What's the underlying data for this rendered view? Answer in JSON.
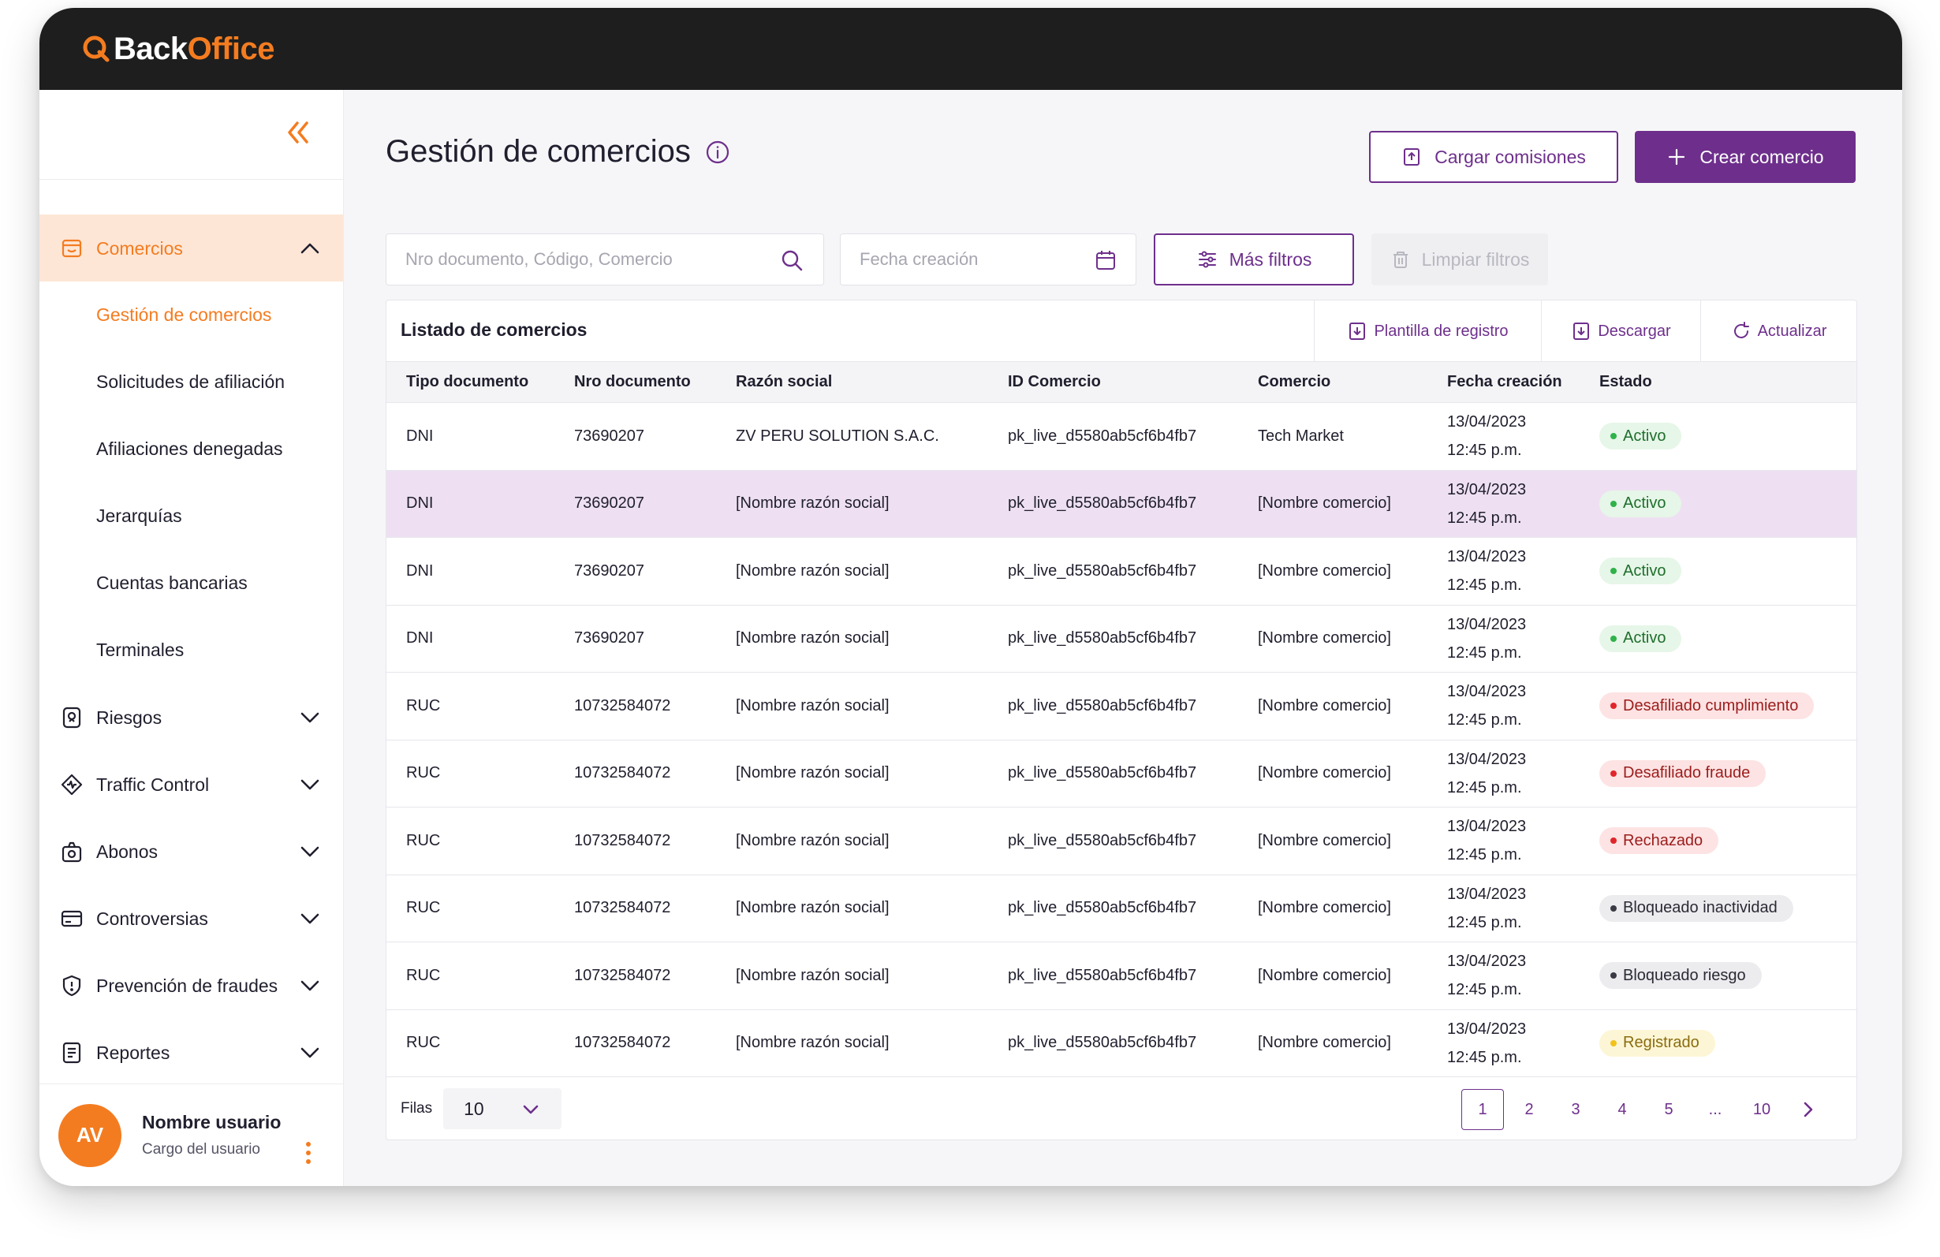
{
  "brand": {
    "back": "Back",
    "office": "Office",
    "accent": "#f47c20",
    "primary": "#6e2f8c"
  },
  "sidebar": {
    "collapse_icon": "double-chevron-left-icon",
    "sections": [
      {
        "label": "Comercios",
        "icon": "store-icon",
        "expanded": true,
        "children": [
          {
            "label": "Gestión de comercios",
            "active": true
          },
          {
            "label": "Solicitudes de afiliación"
          },
          {
            "label": "Afiliaciones denegadas"
          },
          {
            "label": "Jerarquías"
          },
          {
            "label": "Cuentas bancarias"
          },
          {
            "label": "Terminales"
          }
        ]
      },
      {
        "label": "Riesgos",
        "icon": "risk-icon"
      },
      {
        "label": "Traffic Control",
        "icon": "traffic-icon"
      },
      {
        "label": "Abonos",
        "icon": "money-bag-icon"
      },
      {
        "label": "Controversias",
        "icon": "card-icon"
      },
      {
        "label": "Prevención de fraudes",
        "icon": "shield-alert-icon"
      },
      {
        "label": "Reportes",
        "icon": "report-icon"
      }
    ],
    "user": {
      "initials": "AV",
      "name": "Nombre usuario",
      "role": "Cargo del usuario"
    }
  },
  "header": {
    "title": "Gestión de comercios",
    "load_commissions": "Cargar comisiones",
    "create_merchant": "Crear comercio"
  },
  "filters": {
    "search_placeholder": "Nro documento, Código, Comercio",
    "date_placeholder": "Fecha creación",
    "more_filters": "Más filtros",
    "clear_filters": "Limpiar filtros"
  },
  "table": {
    "title": "Listado de comercios",
    "actions": {
      "template": "Plantilla de registro",
      "download": "Descargar",
      "refresh": "Actualizar"
    },
    "columns": [
      "Tipo documento",
      "Nro documento",
      "Razón social",
      "ID Comercio",
      "Comercio",
      "Fecha creación",
      "Estado"
    ],
    "rows": [
      {
        "tipo": "DNI",
        "nro": "73690207",
        "razon": "ZV PERU SOLUTION S.A.C.",
        "id": "pk_live_d5580ab5cf6b4fb7",
        "comercio": "Tech Market",
        "fecha": "13/04/2023",
        "hora": "12:45 p.m.",
        "estado": "Activo",
        "tone": "green"
      },
      {
        "tipo": "DNI",
        "nro": "73690207",
        "razon": "[Nombre razón social]",
        "id": "pk_live_d5580ab5cf6b4fb7",
        "comercio": "[Nombre comercio]",
        "fecha": "13/04/2023",
        "hora": "12:45 p.m.",
        "estado": "Activo",
        "tone": "green",
        "highlight": true
      },
      {
        "tipo": "DNI",
        "nro": "73690207",
        "razon": "[Nombre razón social]",
        "id": "pk_live_d5580ab5cf6b4fb7",
        "comercio": "[Nombre comercio]",
        "fecha": "13/04/2023",
        "hora": "12:45 p.m.",
        "estado": "Activo",
        "tone": "green"
      },
      {
        "tipo": "DNI",
        "nro": "73690207",
        "razon": "[Nombre razón social]",
        "id": "pk_live_d5580ab5cf6b4fb7",
        "comercio": "[Nombre comercio]",
        "fecha": "13/04/2023",
        "hora": "12:45 p.m.",
        "estado": "Activo",
        "tone": "green"
      },
      {
        "tipo": "RUC",
        "nro": "10732584072",
        "razon": "[Nombre razón social]",
        "id": "pk_live_d5580ab5cf6b4fb7",
        "comercio": "[Nombre comercio]",
        "fecha": "13/04/2023",
        "hora": "12:45 p.m.",
        "estado": "Desafiliado cumplimiento",
        "tone": "red"
      },
      {
        "tipo": "RUC",
        "nro": "10732584072",
        "razon": "[Nombre razón social]",
        "id": "pk_live_d5580ab5cf6b4fb7",
        "comercio": "[Nombre comercio]",
        "fecha": "13/04/2023",
        "hora": "12:45 p.m.",
        "estado": "Desafiliado fraude",
        "tone": "red"
      },
      {
        "tipo": "RUC",
        "nro": "10732584072",
        "razon": "[Nombre razón social]",
        "id": "pk_live_d5580ab5cf6b4fb7",
        "comercio": "[Nombre comercio]",
        "fecha": "13/04/2023",
        "hora": "12:45 p.m.",
        "estado": "Rechazado",
        "tone": "red"
      },
      {
        "tipo": "RUC",
        "nro": "10732584072",
        "razon": "[Nombre razón social]",
        "id": "pk_live_d5580ab5cf6b4fb7",
        "comercio": "[Nombre comercio]",
        "fecha": "13/04/2023",
        "hora": "12:45 p.m.",
        "estado": "Bloqueado inactividad",
        "tone": "grey"
      },
      {
        "tipo": "RUC",
        "nro": "10732584072",
        "razon": "[Nombre razón social]",
        "id": "pk_live_d5580ab5cf6b4fb7",
        "comercio": "[Nombre comercio]",
        "fecha": "13/04/2023",
        "hora": "12:45 p.m.",
        "estado": "Bloqueado riesgo",
        "tone": "grey"
      },
      {
        "tipo": "RUC",
        "nro": "10732584072",
        "razon": "[Nombre razón social]",
        "id": "pk_live_d5580ab5cf6b4fb7",
        "comercio": "[Nombre comercio]",
        "fecha": "13/04/2023",
        "hora": "12:45 p.m.",
        "estado": "Registrado",
        "tone": "yellow"
      }
    ]
  },
  "pagination": {
    "rows_label": "Filas",
    "rows_value": "10",
    "pages": [
      "1",
      "2",
      "3",
      "4",
      "5",
      "...",
      "10"
    ],
    "current": "1"
  }
}
